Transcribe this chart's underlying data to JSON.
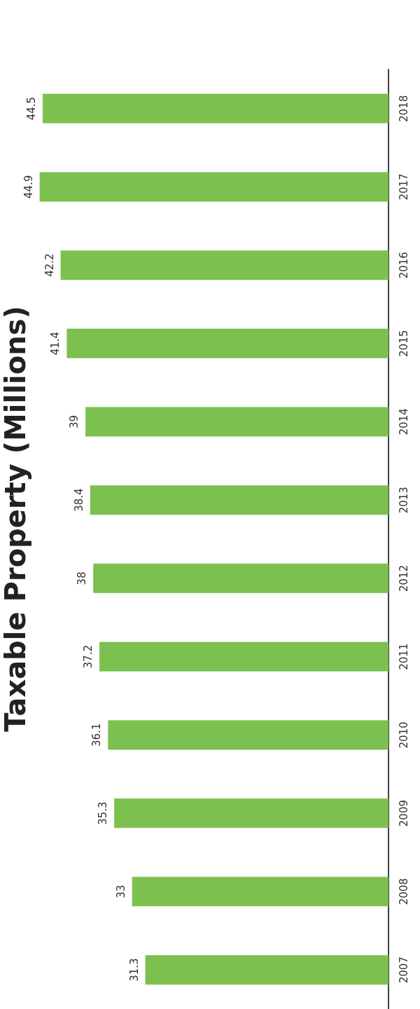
{
  "chart_data": {
    "type": "bar",
    "orientation": "horizontal",
    "title": "Taxable Property (Millions)",
    "categories": [
      "2018",
      "2017",
      "2016",
      "2015",
      "2014",
      "2013",
      "2012",
      "2011",
      "2010",
      "2009",
      "2008",
      "2007"
    ],
    "values": [
      44.5,
      44.9,
      42.2,
      41.4,
      39,
      38.4,
      38,
      37.2,
      36.1,
      35.3,
      33,
      31.3
    ],
    "xlim": [
      50,
      0
    ],
    "color": "#7cc04f",
    "data_labels": true
  }
}
